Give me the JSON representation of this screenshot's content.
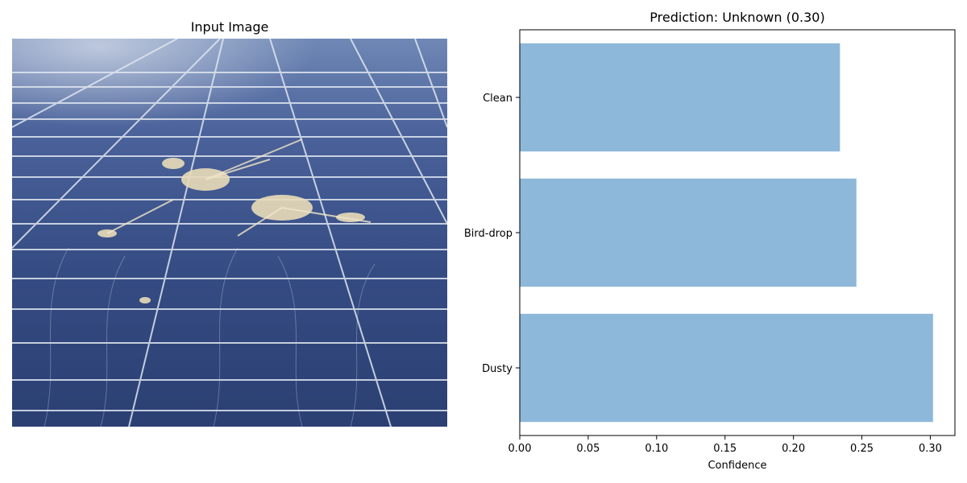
{
  "left_panel": {
    "title": "Input Image"
  },
  "right_panel": {
    "title": "Prediction: Unknown (0.30)"
  },
  "colors": {
    "bar": "#8db8d9",
    "panel_glass": "#3a5487",
    "grid_line": "#dfe6f0"
  },
  "chart_data": {
    "type": "bar",
    "orientation": "horizontal",
    "title": "Prediction: Unknown (0.30)",
    "xlabel": "Confidence",
    "ylabel": "",
    "categories": [
      "Dusty",
      "Bird-drop",
      "Clean"
    ],
    "values": [
      0.302,
      0.246,
      0.234
    ],
    "xlim": [
      0,
      0.318
    ],
    "xticks": [
      "0.00",
      "0.05",
      "0.10",
      "0.15",
      "0.20",
      "0.25",
      "0.30"
    ],
    "grid": false,
    "legend": "none"
  }
}
